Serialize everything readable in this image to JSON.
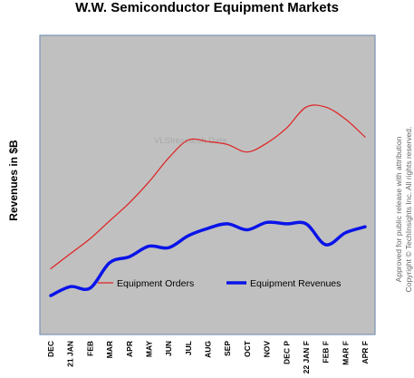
{
  "chart_data": {
    "type": "line",
    "title": "W.W. Semiconductor Equipment Markets",
    "xlabel": "",
    "ylabel": "Revenues in $B",
    "categories": [
      "DEC",
      "21 JAN",
      "FEB",
      "MAR",
      "APR",
      "MAY",
      "JUN",
      "JUL",
      "AUG",
      "SEP",
      "OCT",
      "NOV",
      "DEC P",
      "22 JAN F",
      "FEB F",
      "MAR F",
      "APR F"
    ],
    "series": [
      {
        "name": "Equipment Orders",
        "color": "#e02020",
        "values": [
          0.22,
          0.27,
          0.32,
          0.38,
          0.44,
          0.51,
          0.59,
          0.65,
          0.645,
          0.635,
          0.61,
          0.64,
          0.69,
          0.76,
          0.76,
          0.72,
          0.66
        ]
      },
      {
        "name": "Equipment Revenues",
        "color": "#0a14e8",
        "values": [
          0.13,
          0.16,
          0.155,
          0.24,
          0.26,
          0.295,
          0.29,
          0.33,
          0.355,
          0.37,
          0.35,
          0.375,
          0.37,
          0.37,
          0.3,
          0.34,
          0.36
        ]
      }
    ],
    "ylim": [
      0,
      1
    ],
    "grid": false,
    "legend": "bottom",
    "watermark": "VLSIresearch Data",
    "plot_background": "#c0c0c0"
  },
  "copyright": {
    "line1": "Approved for public release with attribution",
    "line2": "Copyright © TechInsights Inc.   All rights reserved."
  }
}
